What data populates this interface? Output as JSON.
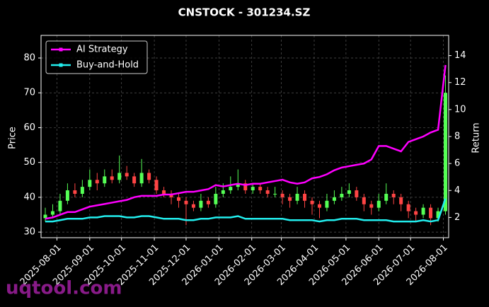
{
  "chart_data": {
    "type": "candlestick",
    "title": "CNSTOCK - 301234.SZ",
    "ylabel": "Price",
    "y2label": "Return",
    "watermark": "uqtool.com",
    "x": [
      "2025-07-21",
      "2025-07-28",
      "2025-08-04",
      "2025-08-11",
      "2025-08-18",
      "2025-08-25",
      "2025-09-01",
      "2025-09-08",
      "2025-09-15",
      "2025-09-22",
      "2025-09-29",
      "2025-10-06",
      "2025-10-13",
      "2025-10-20",
      "2025-10-27",
      "2025-11-03",
      "2025-11-10",
      "2025-11-17",
      "2025-11-24",
      "2025-12-01",
      "2025-12-08",
      "2025-12-15",
      "2025-12-22",
      "2025-12-29",
      "2026-01-05",
      "2026-01-12",
      "2026-01-19",
      "2026-01-26",
      "2026-02-02",
      "2026-02-09",
      "2026-02-16",
      "2026-02-23",
      "2026-03-02",
      "2026-03-09",
      "2026-03-16",
      "2026-03-23",
      "2026-03-30",
      "2026-04-06",
      "2026-04-13",
      "2026-04-20",
      "2026-04-27",
      "2026-05-04",
      "2026-05-11",
      "2026-05-18",
      "2026-05-25",
      "2026-06-01",
      "2026-06-08",
      "2026-06-15",
      "2026-06-22",
      "2026-06-29",
      "2026-07-06",
      "2026-07-13",
      "2026-07-20",
      "2026-07-27",
      "2026-08-03"
    ],
    "open": [
      34,
      35,
      36,
      39,
      42,
      41,
      43,
      45,
      44,
      46,
      45,
      47,
      46,
      44,
      47,
      45,
      42,
      41,
      40,
      39,
      38,
      37,
      39,
      38,
      41,
      42,
      43,
      44,
      42,
      43,
      42,
      41,
      41,
      40,
      39,
      41,
      39,
      38,
      37,
      39,
      40,
      41,
      42,
      40,
      38,
      37,
      39,
      41,
      40,
      38,
      36,
      35,
      37,
      34,
      36
    ],
    "high": [
      37,
      38,
      41,
      44,
      44,
      45,
      48,
      47,
      48,
      48,
      52,
      49,
      47,
      51,
      48,
      46,
      43,
      42,
      41,
      40,
      39,
      41,
      40,
      43,
      44,
      46,
      48,
      45,
      44,
      44,
      43,
      43,
      42,
      41,
      43,
      42,
      40,
      39,
      41,
      42,
      43,
      44,
      43,
      41,
      39,
      41,
      44,
      42,
      41,
      39,
      37,
      38,
      38,
      37,
      75
    ],
    "low": [
      33,
      34,
      35,
      38,
      40,
      40,
      42,
      42,
      43,
      44,
      44,
      45,
      43,
      43,
      44,
      41,
      40,
      38,
      37,
      32,
      36,
      36,
      37,
      37,
      40,
      41,
      42,
      41,
      41,
      41,
      40,
      40,
      38,
      37,
      38,
      37,
      35,
      34,
      36,
      38,
      39,
      40,
      39,
      36,
      35,
      36,
      38,
      38,
      36,
      34,
      33,
      34,
      32,
      33,
      35
    ],
    "close": [
      35,
      36,
      39,
      42,
      41,
      43,
      45,
      44,
      46,
      45,
      47,
      46,
      44,
      47,
      45,
      42,
      41,
      40,
      39,
      38,
      37,
      39,
      38,
      41,
      42,
      43,
      44,
      42,
      43,
      42,
      41,
      41,
      40,
      39,
      41,
      39,
      38,
      37,
      39,
      40,
      41,
      42,
      40,
      38,
      37,
      39,
      41,
      40,
      38,
      36,
      35,
      37,
      34,
      36,
      70
    ],
    "up_color": "#55ff55",
    "down_color": "#ff4444",
    "series": [
      {
        "name": "AI Strategy",
        "color": "#ff00ff",
        "axis": "y2",
        "values": [
          1.9,
          2.0,
          2.2,
          2.4,
          2.4,
          2.6,
          2.8,
          2.9,
          3.0,
          3.1,
          3.2,
          3.3,
          3.5,
          3.6,
          3.6,
          3.6,
          3.7,
          3.7,
          3.8,
          3.9,
          3.9,
          4.0,
          4.1,
          4.4,
          4.3,
          4.4,
          4.5,
          4.4,
          4.5,
          4.5,
          4.6,
          4.7,
          4.8,
          4.6,
          4.5,
          4.6,
          4.9,
          5.0,
          5.2,
          5.5,
          5.7,
          5.8,
          5.9,
          6.0,
          6.3,
          7.3,
          7.3,
          7.1,
          6.9,
          7.6,
          7.8,
          8.0,
          8.3,
          8.5,
          13.3
        ]
      },
      {
        "name": "Buy-and-Hold",
        "color": "#22eeee",
        "axis": "y2",
        "values": [
          1.7,
          1.7,
          1.8,
          1.9,
          1.9,
          1.9,
          2.0,
          2.0,
          2.1,
          2.1,
          2.1,
          2.0,
          2.0,
          2.1,
          2.1,
          2.0,
          1.9,
          1.9,
          1.9,
          1.8,
          1.8,
          1.9,
          1.9,
          2.0,
          2.0,
          2.0,
          2.1,
          1.9,
          1.9,
          1.9,
          1.9,
          1.9,
          1.9,
          1.8,
          1.8,
          1.8,
          1.8,
          1.7,
          1.8,
          1.8,
          1.9,
          1.9,
          1.9,
          1.8,
          1.8,
          1.8,
          1.8,
          1.7,
          1.7,
          1.7,
          1.7,
          1.8,
          1.7,
          1.8,
          3.4
        ]
      }
    ],
    "xlim": [
      "2025-07-17",
      "2026-08-06"
    ],
    "xticks": [
      "2025-08-01",
      "2025-09-01",
      "2025-10-01",
      "2025-11-01",
      "2025-12-01",
      "2026-01-01",
      "2026-02-01",
      "2026-03-01",
      "2026-04-01",
      "2026-05-01",
      "2026-06-01",
      "2026-07-01",
      "2026-08-01"
    ],
    "ylim": [
      28.4,
      86.5
    ],
    "yticks": [
      30,
      40,
      50,
      60,
      70,
      80
    ],
    "y2lim": [
      0.5,
      15.5
    ],
    "y2ticks": [
      2,
      4,
      6,
      8,
      10,
      12,
      14
    ],
    "grid": true,
    "legend": "upper left"
  }
}
